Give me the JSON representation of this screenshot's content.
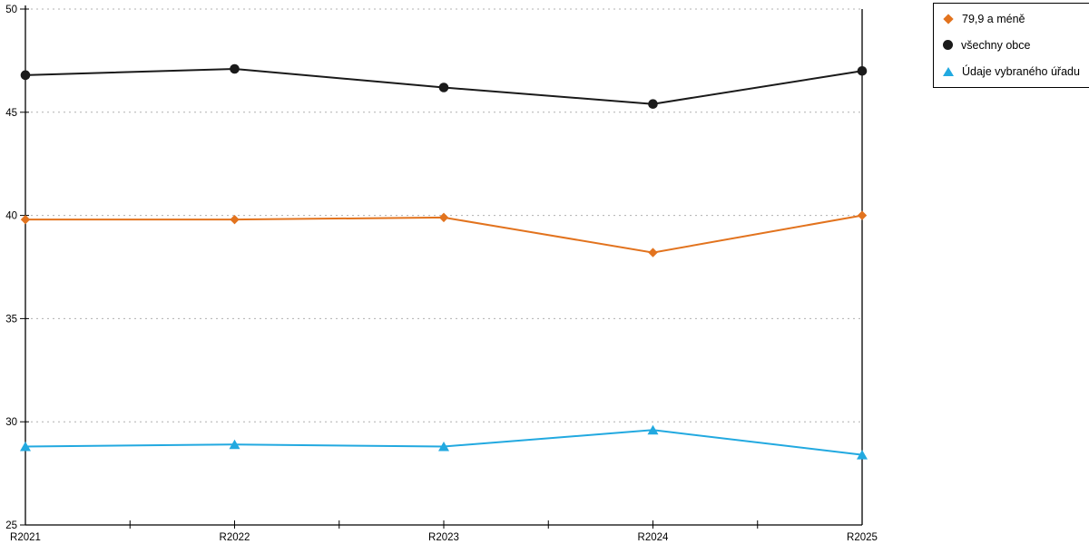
{
  "chart_data": {
    "type": "line",
    "title": "",
    "xlabel": "",
    "ylabel": "",
    "categories": [
      "R2021",
      "R2022",
      "R2023",
      "R2024",
      "R2025"
    ],
    "series": [
      {
        "name": "79,9 a méně",
        "marker": "diamond",
        "color": "#E2731E",
        "values": [
          39.8,
          39.8,
          39.9,
          38.2,
          40.0
        ]
      },
      {
        "name": "všechny obce",
        "marker": "circle",
        "color": "#1A1A1A",
        "values": [
          46.8,
          47.1,
          46.2,
          45.4,
          47.0
        ]
      },
      {
        "name": "Údaje vybraného úřadu",
        "marker": "triangle",
        "color": "#22A9E0",
        "values": [
          28.8,
          28.9,
          28.8,
          29.6,
          28.4
        ]
      }
    ],
    "ylim": [
      25,
      50
    ],
    "ytick_step": 5,
    "yticks": [
      25,
      30,
      35,
      40,
      45,
      50
    ],
    "grid": "horizontal-dotted",
    "legend_position": "top-right-outside"
  },
  "legend": {
    "items": [
      {
        "label": "79,9 a méně"
      },
      {
        "label": "všechny obce"
      },
      {
        "label": "Údaje vybraného úřadu"
      }
    ]
  },
  "colors": {
    "background": "#FFFFFF",
    "axis": "#000000",
    "grid": "#B0B0B0",
    "series_orange": "#E2731E",
    "series_black": "#1A1A1A",
    "series_blue": "#22A9E0"
  }
}
